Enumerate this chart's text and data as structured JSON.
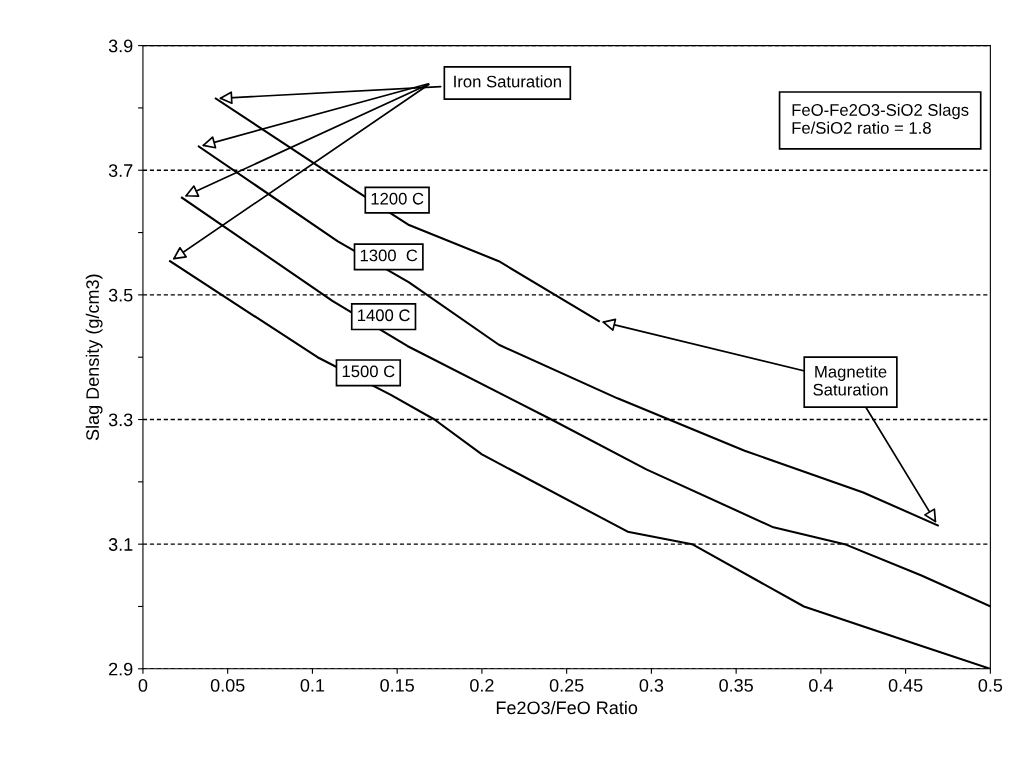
{
  "chart_data": {
    "type": "line",
    "xlabel": "Fe2O3/FeO Ratio",
    "ylabel": "Slag Density (g/cm3)",
    "xlim": [
      0,
      0.5
    ],
    "ylim": [
      2.9,
      3.9
    ],
    "xticks": [
      0,
      0.05,
      0.1,
      0.15,
      0.2,
      0.25,
      0.3,
      0.35,
      0.4,
      0.45,
      0.5
    ],
    "yticks": [
      2.9,
      {
        "value": 3.0,
        "label": null
      },
      3.1,
      {
        "value": 3.2,
        "label": null
      },
      3.3,
      {
        "value": 3.4,
        "label": null
      },
      3.5,
      {
        "value": 3.6,
        "label": null
      },
      3.7,
      {
        "value": 3.8,
        "label": null
      },
      3.9
    ],
    "grid": "y",
    "line_style": "solid",
    "marker": "none",
    "legend": false,
    "series": [
      {
        "name": "1200 C",
        "color": "#000000",
        "x": [
          0.043,
          0.12,
          0.157,
          0.21,
          0.269
        ],
        "values": [
          3.815,
          3.677,
          3.612,
          3.554,
          3.458
        ]
      },
      {
        "name": "1300  C",
        "color": "#000000",
        "x": [
          0.033,
          0.115,
          0.157,
          0.21,
          0.28,
          0.355,
          0.425,
          0.469
        ],
        "values": [
          3.738,
          3.586,
          3.52,
          3.42,
          3.334,
          3.25,
          3.183,
          3.13
        ]
      },
      {
        "name": "1400 C",
        "color": "#000000",
        "x": [
          0.023,
          0.112,
          0.156,
          0.241,
          0.297,
          0.372,
          0.414,
          0.459,
          0.5
        ],
        "values": [
          3.656,
          3.49,
          3.418,
          3.3,
          3.22,
          3.127,
          3.1,
          3.05,
          3.0
        ]
      },
      {
        "name": "1500 C",
        "color": "#000000",
        "x": [
          0.016,
          0.103,
          0.146,
          0.172,
          0.2,
          0.286,
          0.324,
          0.39,
          0.459,
          0.5
        ],
        "values": [
          3.554,
          3.4,
          3.34,
          3.3,
          3.244,
          3.12,
          3.1,
          3.0,
          2.937,
          2.9
        ]
      }
    ],
    "annotations": [
      {
        "text": "Iron Saturation",
        "x": 0.043,
        "y": 3.815
      },
      "FeO-Fe2O3-SiO2 Slags\nFe/SiO2 ratio = 1.8",
      {
        "text": "Magnetite\nSaturation",
        "x": 0.469,
        "y": 3.13
      }
    ]
  }
}
